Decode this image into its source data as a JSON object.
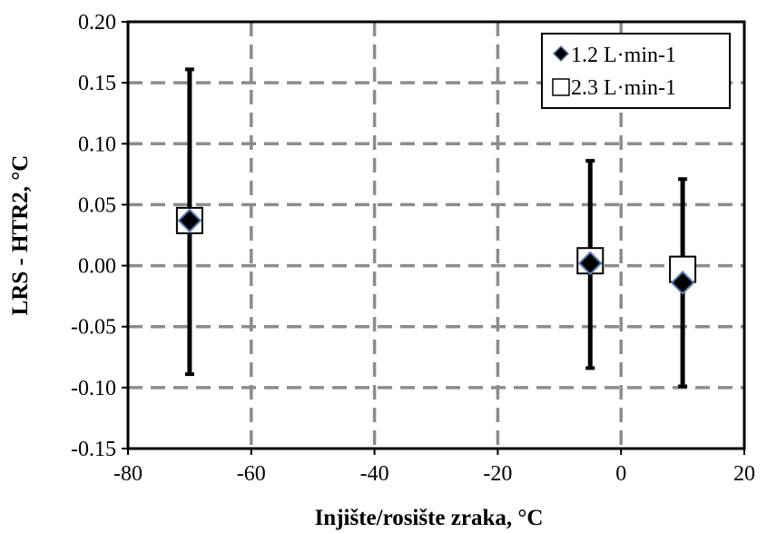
{
  "chart_data": {
    "type": "scatter",
    "title": "",
    "xlabel": "Injište/rosište zraka, °C",
    "ylabel": "LRS - HTR2, °C",
    "xlim": [
      -80,
      20
    ],
    "ylim": [
      -0.15,
      0.2
    ],
    "x_ticks": [
      -80,
      -60,
      -40,
      -20,
      0,
      20
    ],
    "y_ticks": [
      -0.15,
      -0.1,
      -0.05,
      0.0,
      0.05,
      0.1,
      0.15,
      0.2
    ],
    "x_tick_labels": [
      "-80",
      "-60",
      "-40",
      "-20",
      "0",
      "20"
    ],
    "y_tick_labels": [
      "-0.15",
      "-0.10",
      "-0.05",
      "0.00",
      "0.05",
      "0.10",
      "0.15",
      "0.20"
    ],
    "grid": true,
    "legend_position": "top-right",
    "series": [
      {
        "name": "1.2 L·min-1",
        "marker": "diamond",
        "color": "#000000",
        "outline": "#5a7fb5",
        "x": [
          -70,
          -5,
          10
        ],
        "y": [
          0.037,
          0.002,
          -0.014
        ],
        "error_low": [
          -0.089,
          -0.084,
          -0.099
        ],
        "error_high": [
          0.161,
          0.086,
          0.071
        ]
      },
      {
        "name": "2.3 L·min-1",
        "marker": "square",
        "color": "#ffffff",
        "outline": "#000000",
        "x": [
          -70,
          -5,
          10
        ],
        "y": [
          0.037,
          0.004,
          -0.003
        ]
      }
    ]
  }
}
